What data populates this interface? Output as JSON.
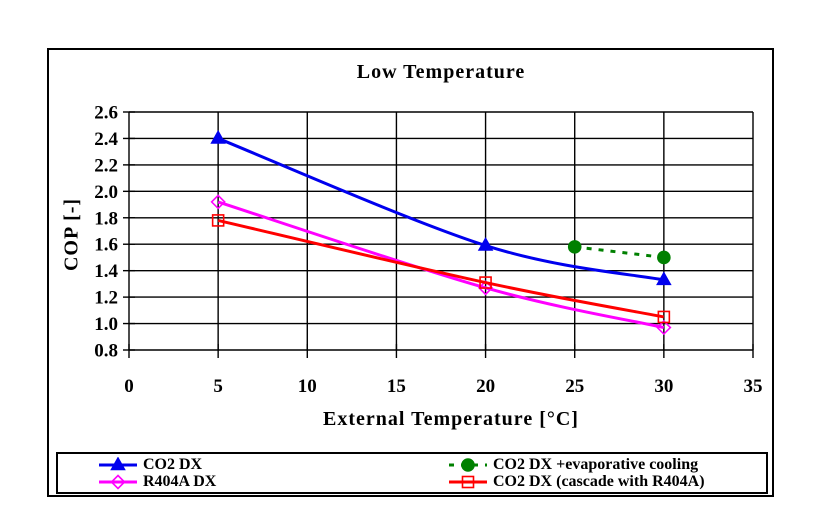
{
  "page": {
    "background": "#ffffff",
    "text_color": "#000000"
  },
  "chart_data": {
    "type": "line",
    "title": "Low Temperature",
    "xlabel": "External Temperature [°C]",
    "ylabel": "COP [-]",
    "xlim": [
      0,
      35
    ],
    "ylim": [
      0.8,
      2.6
    ],
    "x_tick_values": [
      0,
      5,
      10,
      15,
      20,
      25,
      30,
      35
    ],
    "x_tick_labels": [
      "0",
      "5",
      "10",
      "15",
      "20",
      "25",
      "30",
      "35"
    ],
    "y_tick_values": [
      2.6,
      2.4,
      2.2,
      2.0,
      1.8,
      1.6,
      1.4,
      1.2,
      1.0,
      0.8
    ],
    "y_tick_labels": [
      "2.6",
      "2.4",
      "2.2",
      "2.0",
      "1.8",
      "1.6",
      "1.4",
      "1.2",
      "1.0",
      "0.8"
    ],
    "grid": true,
    "legend_position": "bottom",
    "series": [
      {
        "name": "CO2 DX",
        "color": "#0000EE",
        "marker": "triangle",
        "marker_fill": "solid",
        "line_style": "solid",
        "smooth": true,
        "points": [
          [
            5,
            2.4
          ],
          [
            20,
            1.59
          ],
          [
            30,
            1.33
          ]
        ]
      },
      {
        "name": "R404A DX",
        "color": "#FF00FF",
        "marker": "diamond",
        "marker_fill": "open",
        "line_style": "solid",
        "smooth": true,
        "points": [
          [
            5,
            1.92
          ],
          [
            20,
            1.27
          ],
          [
            30,
            0.97
          ]
        ]
      },
      {
        "name": "CO2 DX +evaporative cooling",
        "color": "#008000",
        "marker": "circle",
        "marker_fill": "solid",
        "line_style": "dashed",
        "smooth": false,
        "points": [
          [
            25,
            1.58
          ],
          [
            30,
            1.5
          ]
        ]
      },
      {
        "name": "CO2 DX (cascade with R404A)",
        "color": "#FF0000",
        "marker": "square",
        "marker_fill": "open",
        "line_style": "solid",
        "smooth": true,
        "points": [
          [
            5,
            1.78
          ],
          [
            20,
            1.31
          ],
          [
            30,
            1.05
          ]
        ]
      }
    ]
  }
}
